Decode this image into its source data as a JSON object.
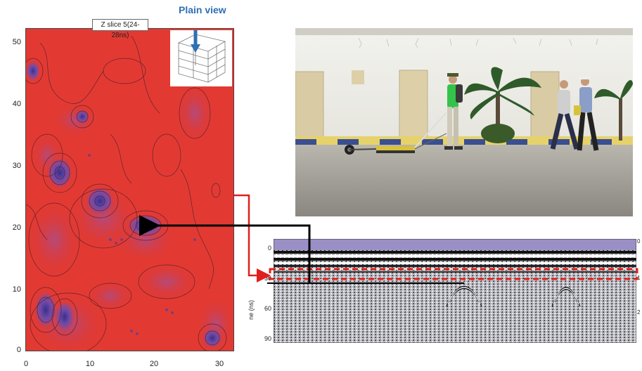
{
  "slice_title": "Z slice 5(24-28ns)",
  "plain_view_label": "Plain view",
  "map_axes": {
    "y_ticks": [
      "50",
      "40",
      "30",
      "20",
      "10",
      "0"
    ],
    "x_ticks": [
      "0",
      "10",
      "20",
      "30"
    ]
  },
  "radargram": {
    "y_label": "ne (ns)",
    "y_ticks": [
      "0",
      "30",
      "60",
      "90"
    ],
    "right_ticks": [
      "0",
      "1",
      "2"
    ]
  },
  "colors": {
    "map_red": "#e23a33",
    "anomaly_purple": "#5a3f9a",
    "arrow_black": "#000000",
    "arrow_red": "#e0201c",
    "plain_view_blue": "#2f6fb3"
  }
}
